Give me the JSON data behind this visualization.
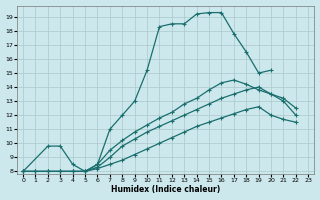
{
  "xlabel": "Humidex (Indice chaleur)",
  "bg_color": "#cce8ec",
  "grid_color": "#aac8cc",
  "line_color": "#1a6e6e",
  "xlim": [
    -0.5,
    23.5
  ],
  "ylim": [
    7.8,
    19.8
  ],
  "xticks": [
    0,
    1,
    2,
    3,
    4,
    5,
    6,
    7,
    8,
    9,
    10,
    11,
    12,
    13,
    14,
    15,
    16,
    17,
    18,
    19,
    20,
    21,
    22,
    23
  ],
  "yticks": [
    8,
    9,
    10,
    11,
    12,
    13,
    14,
    15,
    16,
    17,
    18,
    19
  ],
  "curve_upper_x": [
    0,
    2,
    3,
    4,
    5,
    6,
    7,
    8,
    9,
    10,
    11,
    12,
    13,
    14,
    15,
    16,
    17,
    18,
    19,
    20
  ],
  "curve_upper_y": [
    8,
    9.8,
    9.8,
    8.5,
    8.0,
    8.5,
    11.0,
    12.0,
    13.0,
    15.2,
    18.3,
    18.5,
    18.5,
    19.2,
    19.3,
    19.3,
    17.8,
    16.5,
    15.0,
    15.2
  ],
  "curve_mid1_x": [
    0,
    1,
    2,
    3,
    4,
    5,
    6,
    7,
    8,
    9,
    10,
    11,
    12,
    13,
    14,
    15,
    16,
    17,
    18,
    19,
    20,
    21,
    22
  ],
  "curve_mid1_y": [
    8,
    8,
    8,
    8,
    8,
    8,
    8.5,
    9.5,
    10.2,
    10.8,
    11.3,
    11.8,
    12.2,
    12.8,
    13.2,
    13.8,
    14.3,
    14.5,
    14.2,
    13.8,
    13.5,
    13.2,
    12.5
  ],
  "curve_mid2_x": [
    0,
    1,
    2,
    3,
    4,
    5,
    6,
    7,
    8,
    9,
    10,
    11,
    12,
    13,
    14,
    15,
    16,
    17,
    18,
    19,
    20,
    21,
    22
  ],
  "curve_mid2_y": [
    8,
    8,
    8,
    8,
    8,
    8,
    8.3,
    9.0,
    9.8,
    10.3,
    10.8,
    11.2,
    11.6,
    12.0,
    12.4,
    12.8,
    13.2,
    13.5,
    13.8,
    14.0,
    13.5,
    13.0,
    12.0
  ],
  "curve_low_x": [
    0,
    1,
    2,
    3,
    4,
    5,
    6,
    7,
    8,
    9,
    10,
    11,
    12,
    13,
    14,
    15,
    16,
    17,
    18,
    19,
    20,
    21,
    22
  ],
  "curve_low_y": [
    8,
    8,
    8,
    8,
    8,
    8,
    8.2,
    8.5,
    8.8,
    9.2,
    9.6,
    10.0,
    10.4,
    10.8,
    11.2,
    11.5,
    11.8,
    12.1,
    12.4,
    12.6,
    12.0,
    11.7,
    11.5
  ]
}
